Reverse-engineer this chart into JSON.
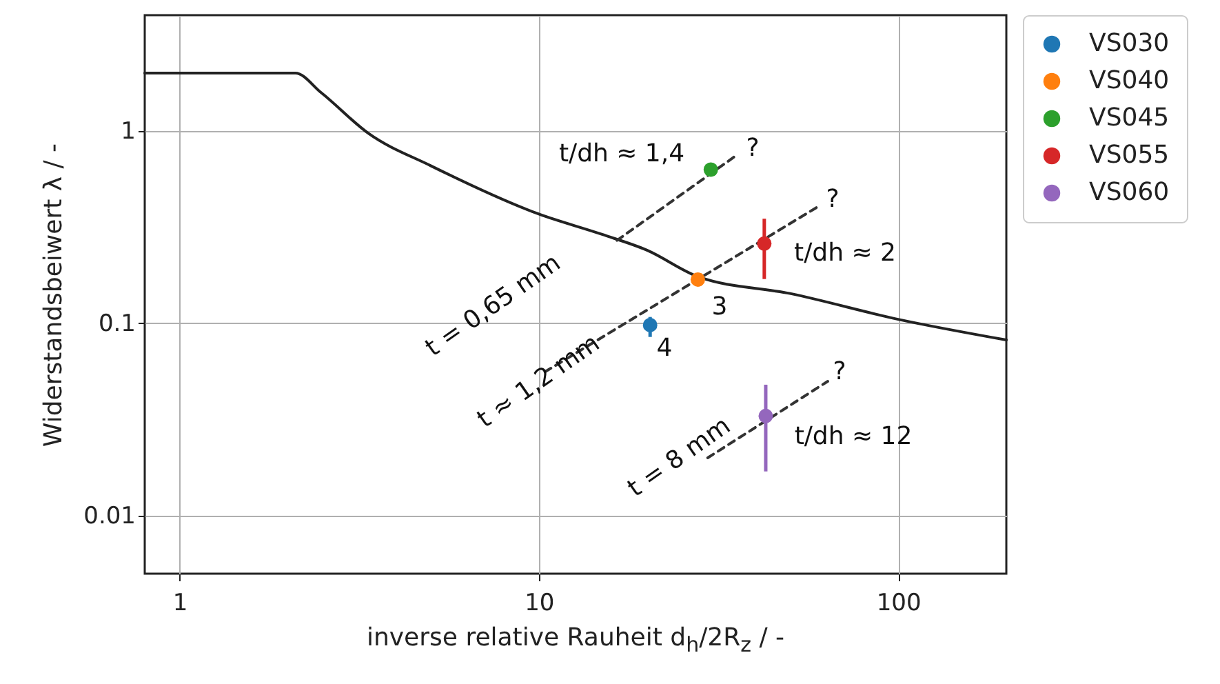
{
  "chart_data": {
    "type": "scatter",
    "xlabel": "inverse relative Rauheit d$_{h}$/2R$_{z}$ / -",
    "ylabel": "Widerstandsbeiwert λ / -",
    "log": "xy",
    "xlim": [
      0.8,
      200
    ],
    "ylim": [
      0.005,
      4
    ],
    "xticks": [
      1,
      10,
      100
    ],
    "yticks": [
      0.01,
      0.1,
      1
    ],
    "grid": true,
    "legend": "right",
    "marker": "circle",
    "series": [
      {
        "type": "line",
        "marker": "none",
        "color": "#222222",
        "line_style": "solid",
        "x": [
          0.8,
          2.1,
          2.48,
          3.36,
          5,
          10,
          15,
          20,
          27.7,
          50,
          100,
          200
        ],
        "values": [
          2,
          2,
          1.58,
          0.97,
          0.66,
          0.37,
          0.29,
          0.24,
          0.175,
          0.143,
          0.105,
          0.082
        ]
      },
      {
        "type": "line",
        "marker": "none",
        "color": "#333333",
        "line_style": "dashed",
        "x": [
          16.5,
          35.2
        ],
        "values": [
          0.27,
          0.74
        ]
      },
      {
        "type": "line",
        "marker": "none",
        "color": "#333333",
        "line_style": "dashed",
        "x": [
          10.4,
          59.9
        ],
        "values": [
          0.056,
          0.405
        ]
      },
      {
        "type": "line",
        "marker": "none",
        "color": "#333333",
        "line_style": "dashed",
        "x": [
          29.5,
          63.7
        ],
        "values": [
          0.02,
          0.05
        ]
      },
      {
        "name": "VS030",
        "color": "#1f77b4",
        "x": [
          20.4
        ],
        "values": [
          0.098
        ],
        "errors": [
          [
            0.085,
            0.108
          ]
        ]
      },
      {
        "name": "VS040",
        "color": "#ff7f0e",
        "x": [
          27.7
        ],
        "values": [
          0.169
        ]
      },
      {
        "name": "VS045",
        "color": "#2ca02c",
        "x": [
          30.1
        ],
        "values": [
          0.63
        ]
      },
      {
        "name": "VS055",
        "color": "#d62728",
        "x": [
          42.4
        ],
        "values": [
          0.26
        ],
        "errors": [
          [
            0.17,
            0.35
          ]
        ]
      },
      {
        "name": "VS060",
        "color": "#9467bd",
        "x": [
          42.8
        ],
        "values": [
          0.033
        ],
        "errors": [
          [
            0.017,
            0.048
          ]
        ]
      }
    ],
    "annotations": [
      "t/dh ≈ 1,4",
      "?",
      "?",
      "t/dh ≈ 2",
      "3",
      "4",
      "?",
      "t/dh ≈ 12",
      "t = 0,65 mm",
      "t ≈ 1,2 mm",
      "t = 8 mm"
    ]
  }
}
